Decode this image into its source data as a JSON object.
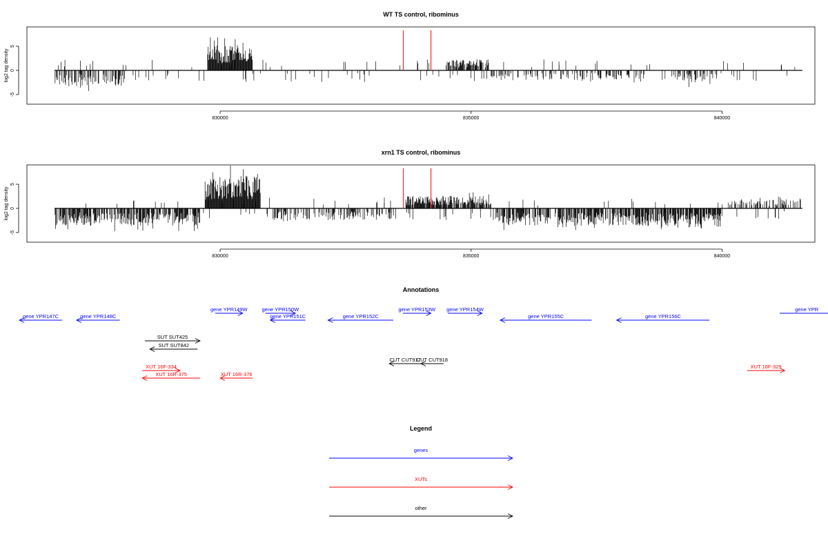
{
  "chart_data": [
    {
      "type": "bar",
      "title": "WT TS control, ribominus",
      "ylabel": "log2 tag density",
      "xlabel": "",
      "xlim": [
        826150,
        841850
      ],
      "ylim": [
        -7,
        9
      ],
      "xticks": [
        830000,
        835000,
        840000
      ],
      "xtick_labels": [
        "830000",
        "835000",
        "840000"
      ],
      "yticks": [
        -5,
        0,
        5
      ],
      "ytick_labels": [
        "-5",
        "0",
        "5"
      ],
      "grid": false,
      "markers": [
        {
          "x": 833650,
          "y": 8.3,
          "color": "#ff3030"
        },
        {
          "x": 834200,
          "y": 8.3,
          "color": "#ff3030"
        }
      ],
      "regions": [
        {
          "x0": 826700,
          "x1": 828100,
          "amp": -3.3,
          "density": 0.55
        },
        {
          "x0": 829750,
          "x1": 830650,
          "amp": 5.2,
          "density": 1.0
        },
        {
          "x0": 834500,
          "x1": 835350,
          "amp": 2.2,
          "density": 0.7
        },
        {
          "x0": 835400,
          "x1": 838500,
          "amp": -2.0,
          "density": 0.25
        },
        {
          "x0": 839000,
          "x1": 839900,
          "amp": -2.6,
          "density": 0.5
        }
      ]
    },
    {
      "type": "bar",
      "title": "xrn1 TS control, ribominus",
      "ylabel": "log2 tag density",
      "xlabel": "",
      "xlim": [
        826150,
        841850
      ],
      "ylim": [
        -7,
        9
      ],
      "xticks": [
        830000,
        835000,
        840000
      ],
      "xtick_labels": [
        "830000",
        "835000",
        "840000"
      ],
      "yticks": [
        -5,
        0,
        5
      ],
      "ytick_labels": [
        "-5",
        "0",
        "5"
      ],
      "grid": false,
      "markers": [
        {
          "x": 833650,
          "y": 8.3,
          "color": "#ff3030"
        },
        {
          "x": 834200,
          "y": 8.3,
          "color": "#ff3030"
        }
      ],
      "regions": [
        {
          "x0": 826700,
          "x1": 829600,
          "amp": -3.6,
          "density": 0.7
        },
        {
          "x0": 829700,
          "x1": 830800,
          "amp": 6.8,
          "density": 1.0
        },
        {
          "x0": 830900,
          "x1": 833500,
          "amp": -2.4,
          "density": 0.45
        },
        {
          "x0": 833700,
          "x1": 835400,
          "amp": 2.6,
          "density": 0.8
        },
        {
          "x0": 835400,
          "x1": 838800,
          "amp": -3.6,
          "density": 0.7
        },
        {
          "x0": 838800,
          "x1": 840000,
          "amp": -4.0,
          "density": 0.85
        },
        {
          "x0": 840100,
          "x1": 841600,
          "amp": 1.9,
          "density": 0.35
        }
      ]
    }
  ],
  "annotations": {
    "title": "Annotations",
    "colors": {
      "genes": "#0000ff",
      "XUTs": "#ff0000",
      "other": "#000000"
    },
    "features": [
      {
        "label": "gene YPR147C",
        "x0": 826000,
        "x1": 826850,
        "strand": "-",
        "row": 0,
        "kind": "genes"
      },
      {
        "label": "gene YPR148C",
        "x0": 827140,
        "x1": 828000,
        "strand": "-",
        "row": 0,
        "kind": "genes"
      },
      {
        "label": "gene YPR149W",
        "x0": 829900,
        "x1": 830450,
        "strand": "+",
        "row": 1,
        "kind": "genes"
      },
      {
        "label": "gene YPR150W",
        "x0": 830900,
        "x1": 831500,
        "strand": "+",
        "row": 1,
        "kind": "genes"
      },
      {
        "label": "gene YPR151C",
        "x0": 831000,
        "x1": 831700,
        "strand": "-",
        "row": 0,
        "kind": "genes"
      },
      {
        "label": "gene YPR152C",
        "x0": 832150,
        "x1": 833450,
        "strand": "-",
        "row": 0,
        "kind": "genes"
      },
      {
        "label": "gene YPR153W",
        "x0": 833640,
        "x1": 834200,
        "strand": "+",
        "row": 1,
        "kind": "genes"
      },
      {
        "label": "gene YPR154W",
        "x0": 834540,
        "x1": 835220,
        "strand": "+",
        "row": 1,
        "kind": "genes"
      },
      {
        "label": "gene YPR155C",
        "x0": 835580,
        "x1": 837400,
        "strand": "-",
        "row": 0,
        "kind": "genes"
      },
      {
        "label": "gene YPR156C",
        "x0": 837900,
        "x1": 839750,
        "strand": "-",
        "row": 0,
        "kind": "genes"
      },
      {
        "label": "gene YPR",
        "x0": 841150,
        "x1": 842300,
        "strand": "+",
        "row": 1,
        "kind": "genes"
      },
      {
        "label": "SUT SUT425",
        "x0": 828500,
        "x1": 829600,
        "strand": "+",
        "row": 0,
        "kind": "other",
        "y": 494
      },
      {
        "label": "SUT SUT842",
        "x0": 828600,
        "x1": 829550,
        "strand": "-",
        "row": 0,
        "kind": "other",
        "y": 506
      },
      {
        "label": "CUT CUT918",
        "x0": 834000,
        "x1": 834450,
        "strand": "-",
        "row": 0,
        "kind": "other",
        "y": 527
      },
      {
        "label": "CUT CUT917",
        "x0": 833370,
        "x1": 834000,
        "strand": "-",
        "row": 0,
        "kind": "other",
        "y": 527
      },
      {
        "label": "XUT 16F-334",
        "x0": 828450,
        "x1": 829200,
        "strand": "+",
        "row": 0,
        "kind": "XUTs",
        "y": 537
      },
      {
        "label": "XUT 16R-375",
        "x0": 828450,
        "x1": 829600,
        "strand": "-",
        "row": 0,
        "kind": "XUTs",
        "y": 548
      },
      {
        "label": "XUT 16R-376",
        "x0": 830000,
        "x1": 830650,
        "strand": "-",
        "row": 0,
        "kind": "XUTs",
        "y": 548
      },
      {
        "label": "XUT 16F-329",
        "x0": 840500,
        "x1": 841250,
        "strand": "+",
        "row": 0,
        "kind": "XUTs",
        "y": 537
      }
    ]
  },
  "legend": {
    "title": "Legend",
    "items": [
      {
        "label": "genes",
        "color": "#0000ff"
      },
      {
        "label": "XUTs",
        "color": "#ff0000"
      },
      {
        "label": "other",
        "color": "#000000"
      }
    ]
  }
}
